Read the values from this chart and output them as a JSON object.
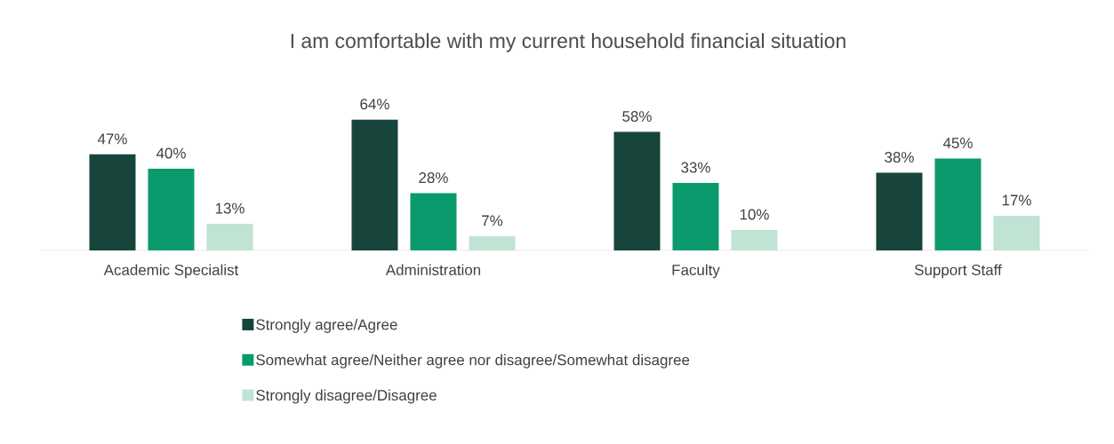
{
  "chart_data": {
    "type": "bar",
    "title": "I am comfortable with my current household financial situation",
    "categories": [
      "Academic Specialist",
      "Administration",
      "Faculty",
      "Support Staff"
    ],
    "series": [
      {
        "name": "Strongly agree/Agree",
        "color": "#18453b",
        "values": [
          47,
          64,
          58,
          38
        ],
        "value_labels": [
          "47%",
          "64%",
          "58%",
          "38%"
        ]
      },
      {
        "name": "Somewhat agree/Neither agree nor disagree/Somewhat disagree",
        "color": "#0b9a6d",
        "values": [
          40,
          28,
          33,
          45
        ],
        "value_labels": [
          "40%",
          "28%",
          "33%",
          "45%"
        ]
      },
      {
        "name": "Strongly disagree/Disagree",
        "color": "#c0e3d3",
        "values": [
          13,
          7,
          10,
          17
        ],
        "value_labels": [
          "13%",
          "7%",
          "10%",
          "17%"
        ]
      }
    ],
    "legend": "bottom"
  }
}
